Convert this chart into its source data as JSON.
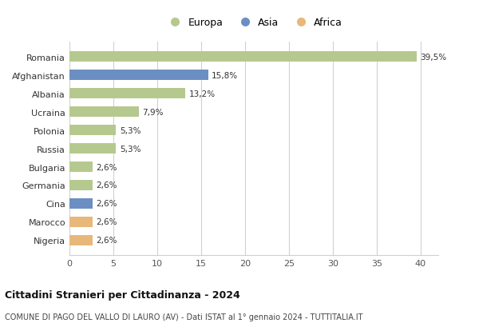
{
  "categories": [
    "Nigeria",
    "Marocco",
    "Cina",
    "Germania",
    "Bulgaria",
    "Russia",
    "Polonia",
    "Ucraina",
    "Albania",
    "Afghanistan",
    "Romania"
  ],
  "values": [
    2.6,
    2.6,
    2.6,
    2.6,
    2.6,
    5.3,
    5.3,
    7.9,
    13.2,
    15.8,
    39.5
  ],
  "labels": [
    "2,6%",
    "2,6%",
    "2,6%",
    "2,6%",
    "2,6%",
    "5,3%",
    "5,3%",
    "7,9%",
    "13,2%",
    "15,8%",
    "39,5%"
  ],
  "continents": [
    "Africa",
    "Africa",
    "Asia",
    "Europa",
    "Europa",
    "Europa",
    "Europa",
    "Europa",
    "Europa",
    "Asia",
    "Europa"
  ],
  "colors": {
    "Europa": "#b5c98e",
    "Asia": "#6b8fc2",
    "Africa": "#e8b87a"
  },
  "xlim": [
    0,
    42
  ],
  "xticks": [
    0,
    5,
    10,
    15,
    20,
    25,
    30,
    35,
    40
  ],
  "title": "Cittadini Stranieri per Cittadinanza - 2024",
  "subtitle": "COMUNE DI PAGO DEL VALLO DI LAURO (AV) - Dati ISTAT al 1° gennaio 2024 - TUTTITALIA.IT",
  "background_color": "#ffffff",
  "grid_color": "#d0d0d0",
  "bar_height": 0.55
}
